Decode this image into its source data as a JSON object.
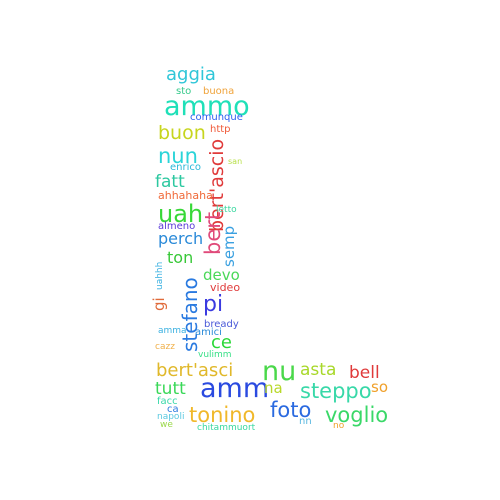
{
  "word_cloud": {
    "words": [
      {
        "text": "aggia",
        "color": "#2fc6d8"
      },
      {
        "text": "sto",
        "color": "#34c98a"
      },
      {
        "text": "buona",
        "color": "#f0a33a"
      },
      {
        "text": "ammo",
        "color": "#1fe0b8"
      },
      {
        "text": "comunque",
        "color": "#2a5ef0"
      },
      {
        "text": "buon",
        "color": "#c7d51e"
      },
      {
        "text": "http",
        "color": "#f05a3a"
      },
      {
        "text": "nun",
        "color": "#2ad4d8"
      },
      {
        "text": "bert'ascio",
        "color": "#e03a3a"
      },
      {
        "text": "san",
        "color": "#b8e04a"
      },
      {
        "text": "enrico",
        "color": "#2ab8d8"
      },
      {
        "text": "fatt",
        "color": "#2cc8a0"
      },
      {
        "text": "ahhahaha",
        "color": "#f06a3a"
      },
      {
        "text": "uah",
        "color": "#38d838"
      },
      {
        "text": "letto",
        "color": "#3ad8a0"
      },
      {
        "text": "almeno",
        "color": "#5a3ad8"
      },
      {
        "text": "perch",
        "color": "#2a8ad8"
      },
      {
        "text": "semp",
        "color": "#3aa0e0"
      },
      {
        "text": "bert",
        "color": "#e04a7a"
      },
      {
        "text": "ton",
        "color": "#38c838"
      },
      {
        "text": "uahhh",
        "color": "#3ab0e0"
      },
      {
        "text": "devo",
        "color": "#4ad858"
      },
      {
        "text": "video",
        "color": "#e03a3a"
      },
      {
        "text": "stefano",
        "color": "#2a7ae0"
      },
      {
        "text": "gi",
        "color": "#e06a3a"
      },
      {
        "text": "pi",
        "color": "#3a3ae0"
      },
      {
        "text": "bready",
        "color": "#4a5ad8"
      },
      {
        "text": "amma",
        "color": "#3ab0e0"
      },
      {
        "text": "amici",
        "color": "#2a8ad8"
      },
      {
        "text": "ce",
        "color": "#2ad838"
      },
      {
        "text": "cazz",
        "color": "#f0b04a"
      },
      {
        "text": "vulimm",
        "color": "#3ae088"
      },
      {
        "text": "bert'asci",
        "color": "#e0b82a"
      },
      {
        "text": "nu",
        "color": "#4ad84a"
      },
      {
        "text": "asta",
        "color": "#a8d82a"
      },
      {
        "text": "bell",
        "color": "#e03a3a"
      },
      {
        "text": "tutt",
        "color": "#3ad858"
      },
      {
        "text": "amm",
        "color": "#2a4ae0"
      },
      {
        "text": "na",
        "color": "#b8d82a"
      },
      {
        "text": "steppo",
        "color": "#38d8a8"
      },
      {
        "text": "so",
        "color": "#f0a02a"
      },
      {
        "text": "facc",
        "color": "#38d8a8"
      },
      {
        "text": "ca",
        "color": "#2a7ae0"
      },
      {
        "text": "tonino",
        "color": "#f0b82a"
      },
      {
        "text": "foto",
        "color": "#2a6ae0"
      },
      {
        "text": "voglio",
        "color": "#3ad868"
      },
      {
        "text": "napoli",
        "color": "#5ac8e0"
      },
      {
        "text": "we",
        "color": "#9ad84a"
      },
      {
        "text": "chitammuort",
        "color": "#3ad8a0"
      },
      {
        "text": "nn",
        "color": "#5ab8e0"
      },
      {
        "text": "no",
        "color": "#f0a02a"
      }
    ]
  }
}
